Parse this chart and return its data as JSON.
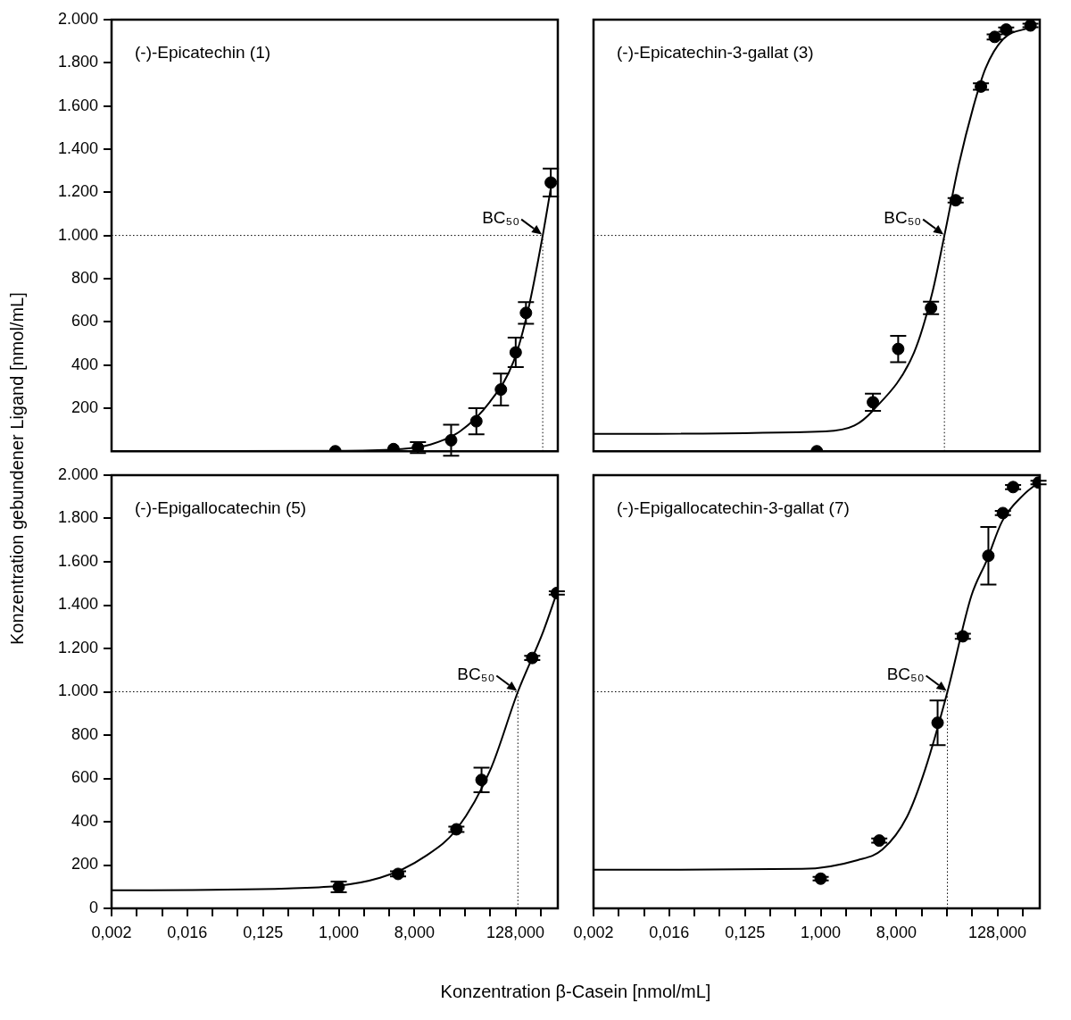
{
  "chart_data": [
    {
      "type": "scatter",
      "title": "(-)-Epicatechin (1)",
      "ylabel": "Konzentration gebundener Ligand [nmol/mL]",
      "log": "x",
      "tick_labels": "y",
      "xlim": [
        0.001953125,
        410
      ],
      "ylim": [
        0,
        2000
      ],
      "yticks": [
        200,
        400,
        600,
        800,
        {
          "value": 1000,
          "label": "1.000"
        },
        {
          "value": 1200,
          "label": "1.200"
        },
        {
          "value": 1400,
          "label": "1.400"
        },
        {
          "value": 1600,
          "label": "1.600"
        },
        {
          "value": 1800,
          "label": "1.800"
        },
        {
          "value": 2000,
          "label": "2.000"
        }
      ],
      "series": [
        {
          "type": "scatter",
          "marker": "circle",
          "color": "#000000",
          "x": [
            0.91,
            4.5,
            8.8,
            21.9,
            43.8,
            86,
            129,
            171,
            338
          ],
          "values": [
            0,
            10,
            17,
            51,
            139,
            286,
            458,
            641,
            1245
          ],
          "errors": [
            null,
            null,
            25,
            72,
            61,
            74,
            68,
            50,
            65
          ]
        },
        {
          "type": "line",
          "color": "#000000",
          "x": [
            0.001953125,
            1,
            5.5,
            12.4,
            27.9,
            63,
            122,
            183,
            271,
            338
          ],
          "values": [
            0,
            2,
            10,
            31,
            92,
            227,
            417,
            661,
            1000,
            1218
          ]
        }
      ],
      "ref_lines": [
        {
          "axis": "y",
          "value": 1000,
          "line_style": "dotted",
          "color": "#000000"
        },
        {
          "axis": "x",
          "value": 271,
          "line_style": "dotted",
          "color": "#000000"
        }
      ],
      "annotations": [
        {
          "text": "BC₅₀",
          "x": 271,
          "y": 1000
        }
      ]
    },
    {
      "type": "scatter",
      "title": "(-)-Epicatechin-3-gallat (3)",
      "log": "x",
      "tick_labels": false,
      "xlim": [
        0.001953125,
        410
      ],
      "ylim": [
        0,
        2000
      ],
      "series": [
        {
          "type": "scatter",
          "marker": "circle",
          "color": "#000000",
          "x": [
            0.9,
            4.2,
            8.4,
            20.7,
            40.7,
            81.5,
            119,
            163,
            318
          ],
          "values": [
            0,
            227,
            474,
            664,
            1163,
            1690,
            1920,
            1954,
            1973
          ],
          "errors": [
            null,
            40,
            61,
            29,
            10,
            15,
            12,
            10,
            8
          ]
        },
        {
          "type": "line",
          "color": "#000000",
          "x": [
            0.001953125,
            1.13,
            2.53,
            4.14,
            13,
            21.3,
            29.9,
            44.3,
            66.3,
            92.4,
            150,
            318
          ],
          "values": [
            80,
            92,
            119,
            186,
            458,
            730,
            1000,
            1326,
            1597,
            1774,
            1910,
            1964
          ]
        }
      ],
      "ref_lines": [
        {
          "axis": "y",
          "value": 1000,
          "line_style": "dotted",
          "color": "#000000"
        },
        {
          "axis": "x",
          "value": 29.9,
          "line_style": "dotted",
          "color": "#000000"
        }
      ],
      "annotations": [
        {
          "text": "BC₅₀",
          "x": 29.9,
          "y": 1000
        }
      ]
    },
    {
      "type": "scatter",
      "title": "(-)-Epigallocatechin (5)",
      "xlabel": "Konzentration β-Casein [nmol/mL]",
      "log": "x",
      "xlim": [
        0.001953125,
        410
      ],
      "ylim": [
        0,
        2000
      ],
      "xticks": [
        {
          "value": 0.001953125,
          "label": "0,002"
        },
        {
          "value": 0.00390625,
          "label": null
        },
        {
          "value": 0.0078125,
          "label": null
        },
        {
          "value": 0.015625,
          "label": "0,016"
        },
        {
          "value": 0.03125,
          "label": null
        },
        {
          "value": 0.0625,
          "label": null
        },
        {
          "value": 0.125,
          "label": "0,125"
        },
        {
          "value": 0.25,
          "label": null
        },
        {
          "value": 0.5,
          "label": null
        },
        {
          "value": 1,
          "label": "1,000"
        },
        {
          "value": 2,
          "label": null
        },
        {
          "value": 4,
          "label": null
        },
        {
          "value": 8,
          "label": "8,000"
        },
        {
          "value": 16,
          "label": null
        },
        {
          "value": 32,
          "label": null
        },
        {
          "value": 64,
          "label": null
        },
        {
          "value": 128,
          "label": "128,000"
        },
        {
          "value": 256,
          "label": null
        }
      ],
      "yticks": [
        0,
        200,
        400,
        600,
        800,
        {
          "value": 1000,
          "label": "1.000"
        },
        {
          "value": 1200,
          "label": "1.200"
        },
        {
          "value": 1400,
          "label": "1.400"
        },
        {
          "value": 1600,
          "label": "1.600"
        },
        {
          "value": 1800,
          "label": "1.800"
        },
        {
          "value": 2000,
          "label": "2.000"
        }
      ],
      "series": [
        {
          "type": "scatter",
          "marker": "circle",
          "color": "#000000",
          "x": [
            1,
            5.1,
            25.3,
            50.5,
            203,
            399
          ],
          "values": [
            99,
            159,
            365,
            593,
            1156,
            1456
          ],
          "errors": [
            25,
            12,
            12,
            57,
            10,
            8
          ]
        },
        {
          "type": "line",
          "color": "#000000",
          "x": [
            0.001953125,
            0.247,
            3.11,
            11.1,
            25.8,
            65,
            137,
            274,
            399
          ],
          "values": [
            83,
            92,
            141,
            244,
            368,
            644,
            1000,
            1277,
            1456
          ]
        }
      ],
      "ref_lines": [
        {
          "axis": "y",
          "value": 1000,
          "line_style": "dotted",
          "color": "#000000"
        },
        {
          "axis": "x",
          "value": 137,
          "line_style": "dotted",
          "color": "#000000"
        }
      ],
      "annotations": [
        {
          "text": "BC₅₀",
          "x": 137,
          "y": 1000
        }
      ]
    },
    {
      "type": "scatter",
      "title": "(-)-Epigallocatechin-3-gallat (7)",
      "log": "x",
      "tick_labels": "x",
      "xlim": [
        0.001953125,
        410
      ],
      "ylim": [
        0,
        2000
      ],
      "xticks": [
        {
          "value": 0.001953125,
          "label": "0,002"
        },
        {
          "value": 0.00390625,
          "label": null
        },
        {
          "value": 0.0078125,
          "label": null
        },
        {
          "value": 0.015625,
          "label": "0,016"
        },
        {
          "value": 0.03125,
          "label": null
        },
        {
          "value": 0.0625,
          "label": null
        },
        {
          "value": 0.125,
          "label": "0,125"
        },
        {
          "value": 0.25,
          "label": null
        },
        {
          "value": 0.5,
          "label": null
        },
        {
          "value": 1,
          "label": "1,000"
        },
        {
          "value": 2,
          "label": null
        },
        {
          "value": 4,
          "label": null
        },
        {
          "value": 8,
          "label": "8,000"
        },
        {
          "value": 16,
          "label": null
        },
        {
          "value": 32,
          "label": null
        },
        {
          "value": 64,
          "label": null
        },
        {
          "value": 128,
          "label": "128,000"
        },
        {
          "value": 256,
          "label": null
        }
      ],
      "series": [
        {
          "type": "scatter",
          "marker": "circle",
          "color": "#000000",
          "x": [
            1,
            5,
            24.8,
            49.6,
            100,
            149,
            197,
            396
          ],
          "values": [
            137,
            313,
            857,
            1256,
            1628,
            1825,
            1945,
            1966
          ],
          "errors": [
            8,
            10,
            103,
            12,
            133,
            10,
            10,
            8
          ]
        },
        {
          "type": "line",
          "color": "#000000",
          "x": [
            0.001953125,
            0.6,
            2.76,
            5.42,
            10.7,
            17.7,
            32.5,
            62.7,
            96,
            146,
            265,
            396
          ],
          "values": [
            178,
            182,
            223,
            271,
            423,
            644,
            1000,
            1443,
            1608,
            1787,
            1911,
            1966
          ]
        }
      ],
      "ref_lines": [
        {
          "axis": "y",
          "value": 1000,
          "line_style": "dotted",
          "color": "#000000"
        },
        {
          "axis": "x",
          "value": 32.5,
          "line_style": "dotted",
          "color": "#000000"
        }
      ],
      "annotations": [
        {
          "text": "BC₅₀",
          "x": 32.5,
          "y": 1000
        }
      ]
    }
  ]
}
